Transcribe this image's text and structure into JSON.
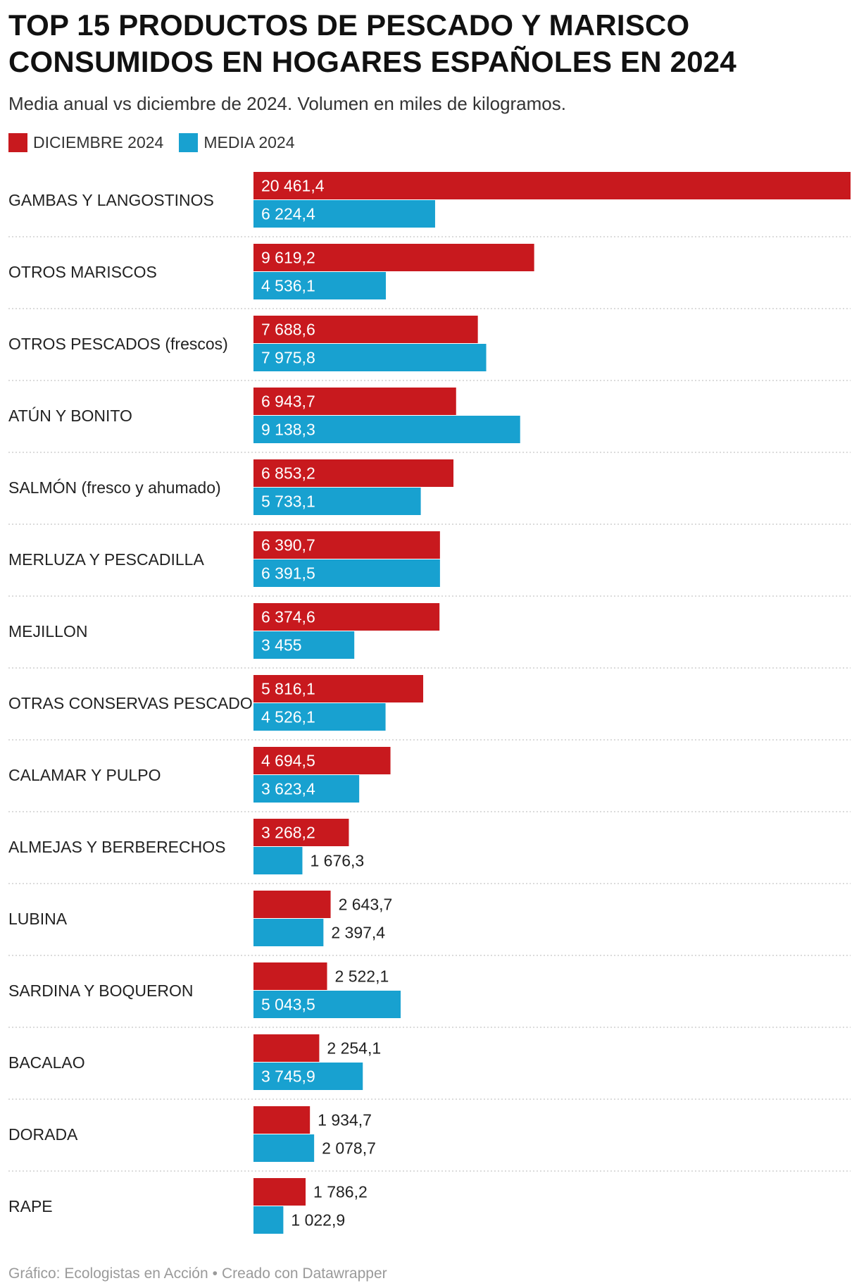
{
  "title": {
    "line1": "TOP 15 PRODUCTOS DE PESCADO Y MARISCO",
    "line2": "CONSUMIDOS EN HOGARES ESPAÑOLES EN 2024"
  },
  "subtitle": "Media anual vs diciembre de 2024. Volumen en miles de kilogramos.",
  "legend": [
    {
      "label": "DICIEMBRE 2024",
      "color": "#c8191e"
    },
    {
      "label": "MEDIA 2024",
      "color": "#18a1d0"
    }
  ],
  "footer": {
    "source": "Gráfico: Ecologistas en Acción",
    "separator": "•",
    "credit": "Creado con Datawrapper"
  },
  "chart_data": {
    "type": "bar",
    "orientation": "horizontal",
    "grid": false,
    "legend_position": "top-left",
    "xlim": [
      0,
      20461.4
    ],
    "categories": [
      "GAMBAS Y LANGOSTINOS",
      "OTROS MARISCOS",
      "OTROS PESCADOS (frescos)",
      "ATÚN Y BONITO",
      "SALMÓN (fresco y ahumado)",
      "MERLUZA Y PESCADILLA",
      "MEJILLON",
      "OTRAS CONSERVAS PESCADO",
      "CALAMAR Y PULPO",
      "ALMEJAS Y BERBERECHOS",
      "LUBINA",
      "SARDINA Y BOQUERON",
      "BACALAO",
      "DORADA",
      "RAPE"
    ],
    "series": [
      {
        "name": "DICIEMBRE 2024",
        "color": "#c8191e",
        "values": [
          20461.4,
          9619.2,
          7688.6,
          6943.7,
          6853.2,
          6390.7,
          6374.6,
          5816.1,
          4694.5,
          3268.2,
          2643.7,
          2522.1,
          2254.1,
          1934.7,
          1786.2
        ],
        "labels": [
          "20 461,4",
          "9 619,2",
          "7 688,6",
          "6 943,7",
          "6 853,2",
          "6 390,7",
          "6 374,6",
          "5 816,1",
          "4 694,5",
          "3 268,2",
          "2 643,7",
          "2 522,1",
          "2 254,1",
          "1 934,7",
          "1 786,2"
        ]
      },
      {
        "name": "MEDIA 2024",
        "color": "#18a1d0",
        "values": [
          6224.4,
          4536.1,
          7975.8,
          9138.3,
          5733.1,
          6391.5,
          3455,
          4526.1,
          3623.4,
          1676.3,
          2397.4,
          5043.5,
          3745.9,
          2078.7,
          1022.9
        ],
        "labels": [
          "6 224,4",
          "4 536,1",
          "7 975,8",
          "9 138,3",
          "5 733,1",
          "6 391,5",
          "3 455",
          "4 526,1",
          "3 623,4",
          "1 676,3",
          "2 397,4",
          "5 043,5",
          "3 745,9",
          "2 078,7",
          "1 022,9"
        ]
      }
    ]
  }
}
